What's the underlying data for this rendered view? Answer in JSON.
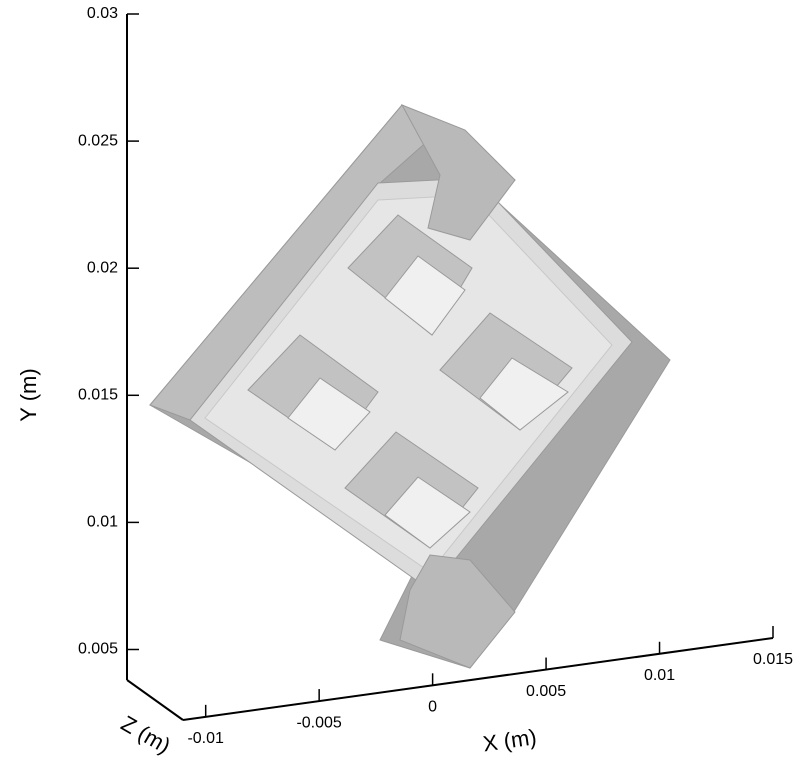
{
  "chart_data": {
    "type": "3d-geometry",
    "xlabel": "X (m)",
    "ylabel": "Y (m)",
    "zlabel": "Z (m)",
    "xlim": [
      -0.011,
      0.015
    ],
    "xticks": [
      -0.01,
      -0.005,
      0,
      0.005,
      0.01,
      0.015
    ],
    "ylim": [
      0.0038,
      0.03
    ],
    "yticks": [
      0.005,
      0.01,
      0.015,
      0.02,
      0.025,
      0.03
    ]
  }
}
